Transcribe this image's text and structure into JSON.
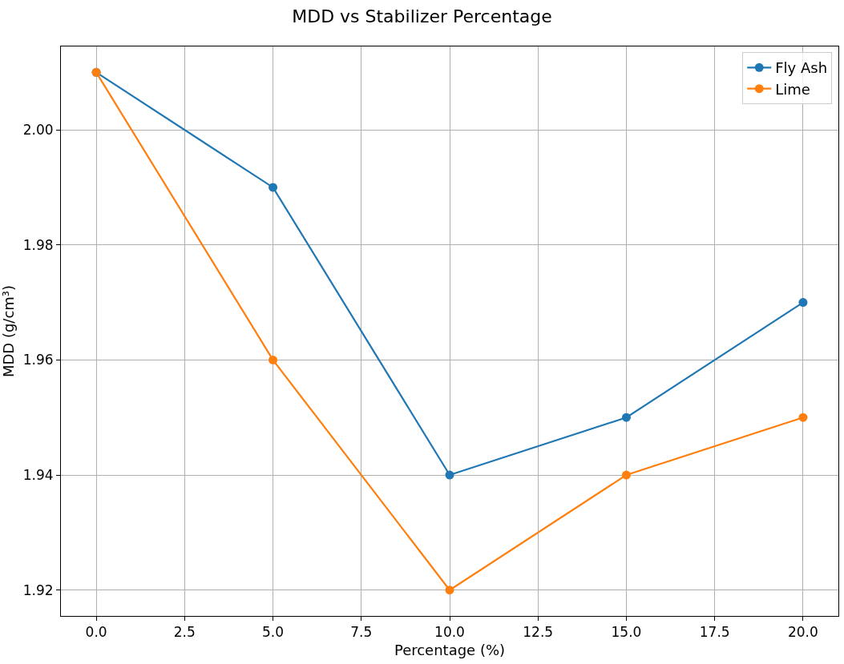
{
  "chart_data": {
    "type": "line",
    "title": "MDD vs Stabilizer Percentage",
    "xlabel": "Percentage (%)",
    "ylabel": "MDD (g/cm³)",
    "x": [
      0,
      5,
      10,
      15,
      20
    ],
    "series": [
      {
        "name": "Fly Ash",
        "color": "#1f77b4",
        "values": [
          2.01,
          1.99,
          1.94,
          1.95,
          1.97
        ]
      },
      {
        "name": "Lime",
        "color": "#ff7f0e",
        "values": [
          2.01,
          1.96,
          1.92,
          1.94,
          1.95
        ]
      }
    ],
    "xlim": [
      -1,
      21
    ],
    "xticks": [
      {
        "value": 0,
        "label": "0.0"
      },
      {
        "value": 2.5,
        "label": "2.5"
      },
      {
        "value": 5,
        "label": "5.0"
      },
      {
        "value": 7.5,
        "label": "7.5"
      },
      {
        "value": 10,
        "label": "10.0"
      },
      {
        "value": 12.5,
        "label": "12.5"
      },
      {
        "value": 15,
        "label": "15.0"
      },
      {
        "value": 17.5,
        "label": "17.5"
      },
      {
        "value": 20,
        "label": "20.0"
      }
    ],
    "ylim": [
      1.9155,
      2.0145
    ],
    "yticks": [
      {
        "value": 1.92,
        "label": "1.92"
      },
      {
        "value": 1.94,
        "label": "1.94"
      },
      {
        "value": 1.96,
        "label": "1.96"
      },
      {
        "value": 1.98,
        "label": "1.98"
      },
      {
        "value": 2.0,
        "label": "2.00"
      }
    ],
    "grid": true,
    "legend": "top right",
    "marker": "circle",
    "line_style": "solid"
  }
}
